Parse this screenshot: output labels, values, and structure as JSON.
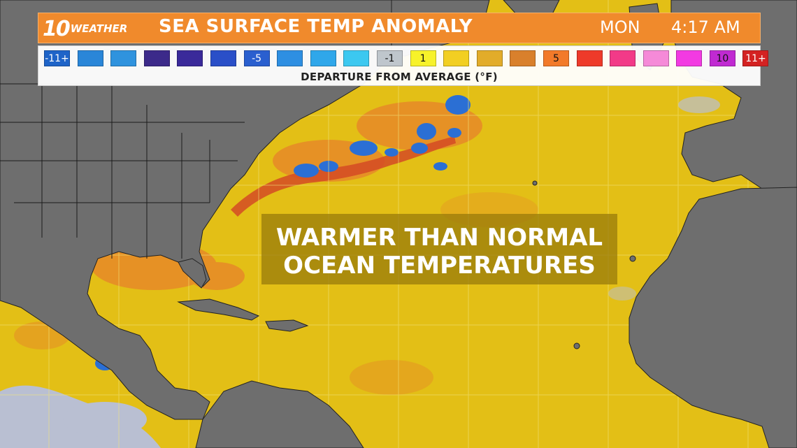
{
  "header": {
    "logo_number": "10",
    "logo_word": "WEATHER",
    "title": "SEA SURFACE TEMP ANOMALY",
    "day": "MON",
    "time": "4:17 AM",
    "bar_color": "#f08a2c"
  },
  "legend": {
    "caption": "DEPARTURE FROM AVERAGE (°F)",
    "swatches": [
      {
        "label": "-11+",
        "color": "#1f64c8",
        "light_text": true
      },
      {
        "label": "",
        "color": "#2a86d8"
      },
      {
        "label": "",
        "color": "#2f93de"
      },
      {
        "label": "",
        "color": "#3c2a8a"
      },
      {
        "label": "",
        "color": "#3a2a9a"
      },
      {
        "label": "",
        "color": "#2a4fc8"
      },
      {
        "label": "-5",
        "color": "#2a5fcf",
        "light_text": true
      },
      {
        "label": "",
        "color": "#2e8fe2"
      },
      {
        "label": "",
        "color": "#2fa7ea"
      },
      {
        "label": "",
        "color": "#3cc8f0"
      },
      {
        "label": "-1",
        "color": "#bfc6cc"
      },
      {
        "label": "1",
        "color": "#f7f22a"
      },
      {
        "label": "",
        "color": "#f2cf22"
      },
      {
        "label": "",
        "color": "#e2ac2a"
      },
      {
        "label": "",
        "color": "#d9802c"
      },
      {
        "label": "5",
        "color": "#f27a2a"
      },
      {
        "label": "",
        "color": "#ee3a2a"
      },
      {
        "label": "",
        "color": "#f23a88"
      },
      {
        "label": "",
        "color": "#f58ad8"
      },
      {
        "label": "",
        "color": "#f23ae2"
      },
      {
        "label": "10",
        "color": "#c02ad2"
      },
      {
        "label": "11+",
        "color": "#d42222",
        "light_text": true
      }
    ]
  },
  "overlay": {
    "line1": "WARMER THAN NORMAL",
    "line2": "OCEAN TEMPERATURES"
  },
  "map_colors": {
    "land": "#6e6e6e",
    "ocean_base": "#e3bf16",
    "warm": "#e6762a",
    "hot": "#d64a24",
    "cool": "#2f8fe0",
    "cold": "#1f5cc8",
    "neutral": "#b9bfd2",
    "grid": "#f0e27a"
  }
}
